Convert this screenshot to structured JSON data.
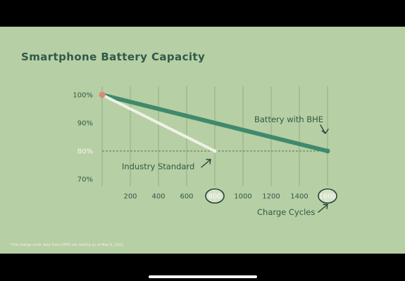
{
  "slide": {
    "footnote": "*The charge cycle data from OPPO lab testing as of May 6, 2022"
  },
  "colors": {
    "background": "#b7cfa4",
    "bhe_line": "#3f8a6c",
    "industry_line": "#eef3e6",
    "start_point": "#d98b73",
    "grid": "#8ea582",
    "text": "#2f5a4a"
  },
  "chart_data": {
    "type": "line",
    "title": "Smartphone Battery Capacity",
    "xlabel": "Charge Cycles",
    "ylabel": "",
    "xlim": [
      0,
      1600
    ],
    "ylim": [
      70,
      100
    ],
    "x_ticks": [
      200,
      400,
      600,
      800,
      1000,
      1200,
      1400,
      1600
    ],
    "x_tick_labels": [
      "200",
      "400",
      "600",
      "800",
      "1000",
      "1200",
      "1400",
      "1600"
    ],
    "highlighted_x_ticks": [
      800,
      1600
    ],
    "y_ticks": [
      70,
      80,
      90,
      100
    ],
    "y_tick_labels": [
      "70%",
      "80%",
      "90%",
      "100%"
    ],
    "grid": "vertical",
    "reference_lines": [
      {
        "y": 80,
        "style": "dashed",
        "x_range": [
          0,
          1600
        ]
      }
    ],
    "series": [
      {
        "name": "Battery with BHE",
        "x": [
          0,
          1600
        ],
        "y": [
          100,
          80
        ]
      },
      {
        "name": "Industry Standard",
        "x": [
          0,
          800
        ],
        "y": [
          100,
          80
        ]
      }
    ]
  }
}
